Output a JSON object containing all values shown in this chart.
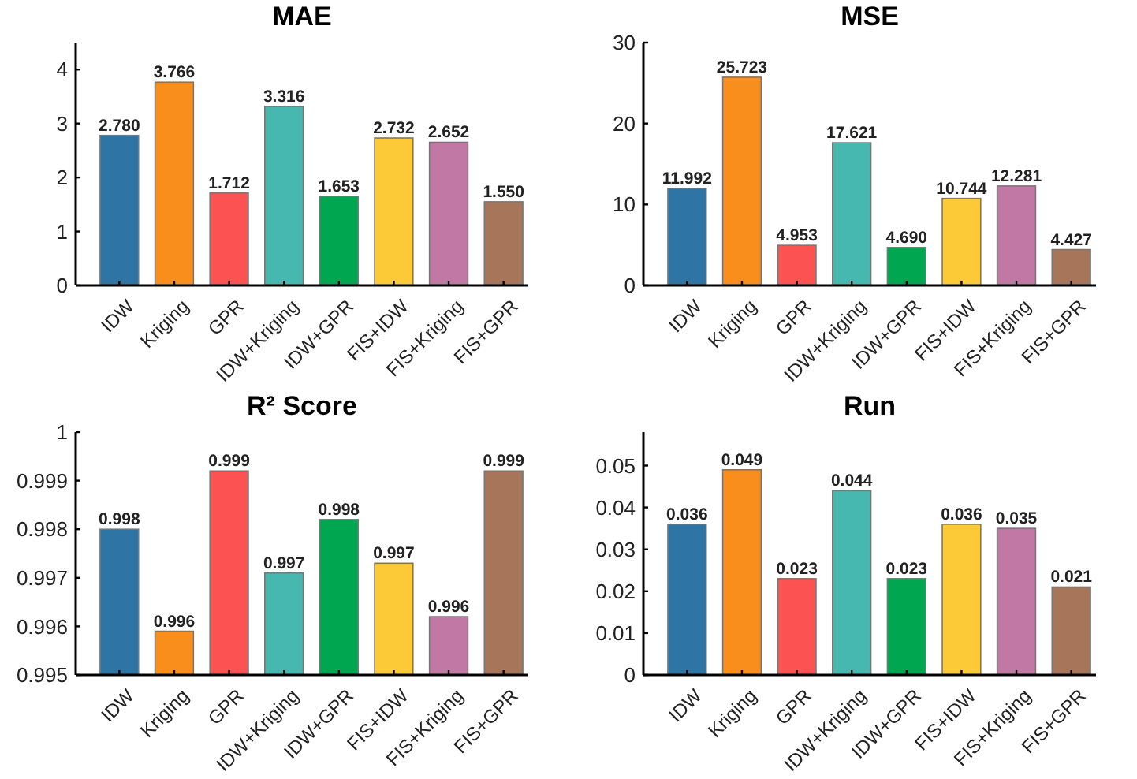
{
  "chart_data": [
    {
      "type": "bar",
      "title": "MAE",
      "categories": [
        "IDW",
        "Kriging",
        "GPR",
        "IDW+Kriging",
        "IDW+GPR",
        "FIS+IDW",
        "FIS+Kriging",
        "FIS+GPR"
      ],
      "values": [
        2.78,
        3.766,
        1.712,
        3.316,
        1.653,
        2.732,
        2.652,
        1.55
      ],
      "value_labels": [
        "2.780",
        "3.766",
        "1.712",
        "3.316",
        "1.653",
        "2.732",
        "2.652",
        "1.550"
      ],
      "colors": [
        "#2e75a6",
        "#f98e1d",
        "#fc5252",
        "#47b8b0",
        "#00a650",
        "#fdca37",
        "#c178a4",
        "#a7755a"
      ],
      "ylim": [
        0,
        4.5
      ],
      "yticks": [
        0,
        1,
        2,
        3,
        4
      ],
      "grid": false
    },
    {
      "type": "bar",
      "title": "MSE",
      "categories": [
        "IDW",
        "Kriging",
        "GPR",
        "IDW+Kriging",
        "IDW+GPR",
        "FIS+IDW",
        "FIS+Kriging",
        "FIS+GPR"
      ],
      "values": [
        11.992,
        25.723,
        4.953,
        17.621,
        4.69,
        10.744,
        12.281,
        4.427
      ],
      "value_labels": [
        "11.992",
        "25.723",
        "4.953",
        "17.621",
        "4.690",
        "10.744",
        "12.281",
        "4.427"
      ],
      "colors": [
        "#2e75a6",
        "#f98e1d",
        "#fc5252",
        "#47b8b0",
        "#00a650",
        "#fdca37",
        "#c178a4",
        "#a7755a"
      ],
      "ylim": [
        0,
        30
      ],
      "yticks": [
        0,
        10,
        20,
        30
      ],
      "grid": false
    },
    {
      "type": "bar",
      "title": "R² Score",
      "categories": [
        "IDW",
        "Kriging",
        "GPR",
        "IDW+Kriging",
        "IDW+GPR",
        "FIS+IDW",
        "FIS+Kriging",
        "FIS+GPR"
      ],
      "values": [
        0.998,
        0.9959,
        0.9992,
        0.9971,
        0.9982,
        0.9973,
        0.9962,
        0.9992
      ],
      "value_labels": [
        "0.998",
        "0.996",
        "0.999",
        "0.997",
        "0.998",
        "0.997",
        "0.996",
        "0.999"
      ],
      "colors": [
        "#2e75a6",
        "#f98e1d",
        "#fc5252",
        "#47b8b0",
        "#00a650",
        "#fdca37",
        "#c178a4",
        "#a7755a"
      ],
      "ylim": [
        0.995,
        1
      ],
      "yticks": [
        0.995,
        0.996,
        0.997,
        0.998,
        0.999,
        1
      ],
      "grid": false
    },
    {
      "type": "bar",
      "title": "Run",
      "categories": [
        "IDW",
        "Kriging",
        "GPR",
        "IDW+Kriging",
        "IDW+GPR",
        "FIS+IDW",
        "FIS+Kriging",
        "FIS+GPR"
      ],
      "values": [
        0.036,
        0.049,
        0.023,
        0.044,
        0.023,
        0.036,
        0.035,
        0.021
      ],
      "value_labels": [
        "0.036",
        "0.049",
        "0.023",
        "0.044",
        "0.023",
        "0.036",
        "0.035",
        "0.021"
      ],
      "colors": [
        "#2e75a6",
        "#f98e1d",
        "#fc5252",
        "#47b8b0",
        "#00a650",
        "#fdca37",
        "#c178a4",
        "#a7755a"
      ],
      "ylim": [
        0,
        0.058
      ],
      "yticks": [
        0,
        0.01,
        0.02,
        0.03,
        0.04,
        0.05
      ],
      "grid": false
    }
  ]
}
